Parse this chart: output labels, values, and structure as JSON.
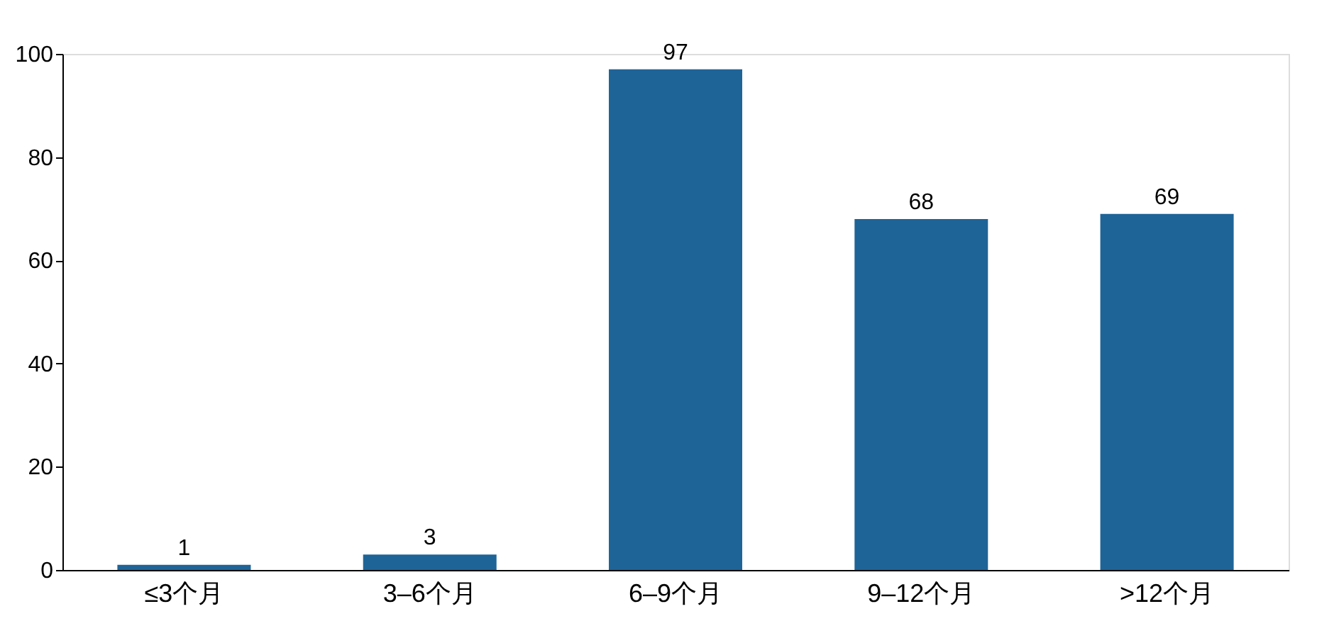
{
  "chart_data": {
    "type": "bar",
    "categories": [
      "≤3个月",
      "3–6个月",
      "6–9个月",
      "9–12个月",
      ">12个月"
    ],
    "values": [
      1,
      3,
      97,
      68,
      69
    ],
    "color": "#1f6497",
    "ylim": [
      0,
      100
    ],
    "yticks": [
      0,
      20,
      40,
      60,
      80,
      100
    ],
    "grid": false,
    "data_labels": true
  }
}
